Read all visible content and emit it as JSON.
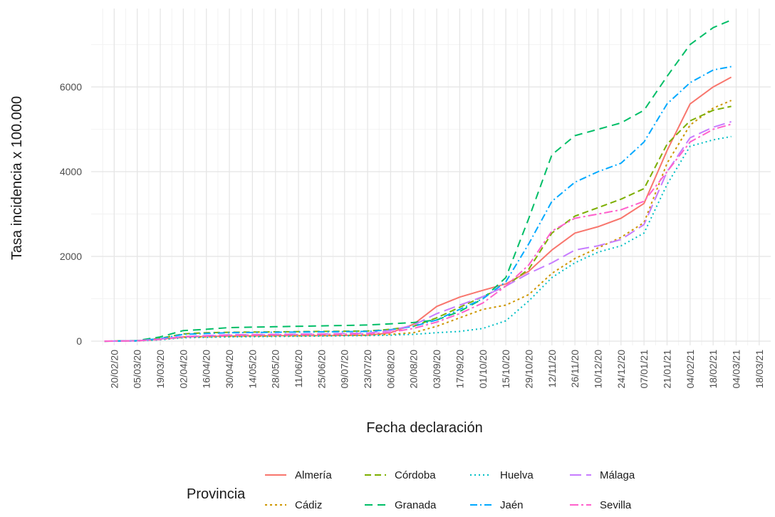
{
  "chart_data": {
    "type": "line",
    "title": "",
    "xlabel": "Fecha declaración",
    "ylabel": "Tasa incidencia x 100.000",
    "ylim": [
      -100,
      7850
    ],
    "y_ticks": [
      0,
      2000,
      4000,
      6000
    ],
    "x_range": [
      "2020-02-06",
      "2021-03-25"
    ],
    "x_tick_labels": [
      "20/02/20",
      "05/03/20",
      "19/03/20",
      "02/04/20",
      "16/04/20",
      "30/04/20",
      "14/05/20",
      "28/05/20",
      "11/06/20",
      "25/06/20",
      "09/07/20",
      "23/07/20",
      "06/08/20",
      "20/08/20",
      "03/09/20",
      "17/09/20",
      "01/10/20",
      "15/10/20",
      "29/10/20",
      "12/11/20",
      "26/11/20",
      "10/12/20",
      "24/12/20",
      "07/01/21",
      "21/01/21",
      "04/02/21",
      "18/02/21",
      "04/03/21",
      "18/03/21"
    ],
    "x_tick_dates": [
      "2020-02-20",
      "2020-03-05",
      "2020-03-19",
      "2020-04-02",
      "2020-04-16",
      "2020-04-30",
      "2020-05-14",
      "2020-05-28",
      "2020-06-11",
      "2020-06-25",
      "2020-07-09",
      "2020-07-23",
      "2020-08-06",
      "2020-08-20",
      "2020-09-03",
      "2020-09-17",
      "2020-10-01",
      "2020-10-15",
      "2020-10-29",
      "2020-11-12",
      "2020-11-26",
      "2020-12-10",
      "2020-12-24",
      "2021-01-07",
      "2021-01-21",
      "2021-02-04",
      "2021-02-18",
      "2021-03-04",
      "2021-03-18"
    ],
    "grid": true,
    "legend": {
      "title": "Provincia",
      "position": "bottom"
    },
    "x": [
      "2020-02-14",
      "2020-03-05",
      "2020-03-19",
      "2020-04-02",
      "2020-04-16",
      "2020-04-30",
      "2020-05-28",
      "2020-06-25",
      "2020-07-23",
      "2020-08-06",
      "2020-08-20",
      "2020-09-03",
      "2020-09-17",
      "2020-10-01",
      "2020-10-15",
      "2020-10-29",
      "2020-11-12",
      "2020-11-26",
      "2020-12-10",
      "2020-12-24",
      "2021-01-07",
      "2021-01-21",
      "2021-02-04",
      "2021-02-18",
      "2021-03-01"
    ],
    "series": [
      {
        "name": "Almería",
        "color": "#F8766D",
        "dash": "none",
        "values": [
          0,
          10,
          50,
          100,
          110,
          120,
          130,
          130,
          140,
          200,
          400,
          820,
          1040,
          1200,
          1350,
          1650,
          2150,
          2550,
          2700,
          2900,
          3250,
          4500,
          5600,
          6000,
          6230
        ]
      },
      {
        "name": "Cádiz",
        "color": "#CD9600",
        "dash": "3,4",
        "values": [
          0,
          5,
          40,
          90,
          100,
          110,
          120,
          130,
          140,
          160,
          200,
          350,
          550,
          750,
          850,
          1100,
          1600,
          1950,
          2200,
          2450,
          2800,
          4200,
          5100,
          5500,
          5680
        ]
      },
      {
        "name": "Córdoba",
        "color": "#7CAE00",
        "dash": "9,5",
        "values": [
          0,
          10,
          70,
          170,
          200,
          210,
          220,
          230,
          240,
          280,
          350,
          550,
          800,
          1050,
          1300,
          1700,
          2550,
          2950,
          3150,
          3350,
          3600,
          4650,
          5200,
          5450,
          5540
        ]
      },
      {
        "name": "Granada",
        "color": "#00BE67",
        "dash": "11,7",
        "values": [
          0,
          15,
          100,
          250,
          280,
          320,
          340,
          360,
          380,
          410,
          440,
          500,
          700,
          1000,
          1500,
          2900,
          4400,
          4850,
          5000,
          5150,
          5450,
          6250,
          7000,
          7400,
          7580
        ]
      },
      {
        "name": "Huelva",
        "color": "#00BFC4",
        "dash": "2,4",
        "values": [
          0,
          5,
          30,
          80,
          90,
          100,
          110,
          120,
          130,
          140,
          160,
          200,
          230,
          300,
          480,
          950,
          1500,
          1850,
          2100,
          2250,
          2550,
          3700,
          4600,
          4750,
          4830
        ]
      },
      {
        "name": "Jaén",
        "color": "#00A9FF",
        "dash": "10,4,2,4",
        "values": [
          0,
          10,
          60,
          160,
          180,
          200,
          210,
          220,
          230,
          270,
          350,
          500,
          750,
          1000,
          1400,
          2300,
          3300,
          3750,
          4000,
          4200,
          4700,
          5600,
          6100,
          6400,
          6480
        ]
      },
      {
        "name": "Málaga",
        "color": "#C77CFF",
        "dash": "16,7",
        "values": [
          0,
          10,
          50,
          110,
          130,
          150,
          160,
          170,
          190,
          250,
          380,
          650,
          850,
          1050,
          1300,
          1600,
          1850,
          2150,
          2250,
          2400,
          2750,
          4000,
          4800,
          5050,
          5180
        ]
      },
      {
        "name": "Sevilla",
        "color": "#FF61CC",
        "dash": "12,4,3,4",
        "values": [
          0,
          8,
          40,
          100,
          120,
          140,
          150,
          160,
          170,
          210,
          300,
          450,
          650,
          900,
          1300,
          1800,
          2600,
          2900,
          3000,
          3100,
          3300,
          4000,
          4700,
          5000,
          5120
        ]
      }
    ]
  }
}
